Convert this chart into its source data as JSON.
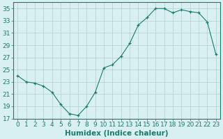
{
  "x": [
    0,
    1,
    2,
    3,
    4,
    5,
    6,
    7,
    8,
    9,
    10,
    11,
    12,
    13,
    14,
    15,
    16,
    17,
    18,
    19,
    20,
    21,
    22,
    23
  ],
  "y": [
    24.0,
    23.0,
    22.8,
    22.3,
    21.3,
    19.3,
    17.8,
    17.5,
    19.0,
    21.3,
    25.3,
    25.8,
    27.2,
    29.3,
    32.3,
    33.5,
    35.0,
    35.0,
    34.3,
    34.8,
    34.5,
    34.3,
    32.8,
    27.5
  ],
  "xlabel": "Humidex (Indice chaleur)",
  "ylim": [
    17,
    36
  ],
  "xlim": [
    -0.5,
    23.5
  ],
  "yticks": [
    17,
    19,
    21,
    23,
    25,
    27,
    29,
    31,
    33,
    35
  ],
  "xticks": [
    0,
    1,
    2,
    3,
    4,
    5,
    6,
    7,
    8,
    9,
    10,
    11,
    12,
    13,
    14,
    15,
    16,
    17,
    18,
    19,
    20,
    21,
    22,
    23
  ],
  "line_color": "#1a7a6e",
  "marker": "+",
  "bg_color": "#d9f0f0",
  "grid_color": "#b0cece",
  "spine_color": "#1a7a6e",
  "tick_color": "#1a7a6e",
  "label_color": "#1a7a6e",
  "xlabel_fontsize": 7.5,
  "tick_fontsize": 6.5
}
